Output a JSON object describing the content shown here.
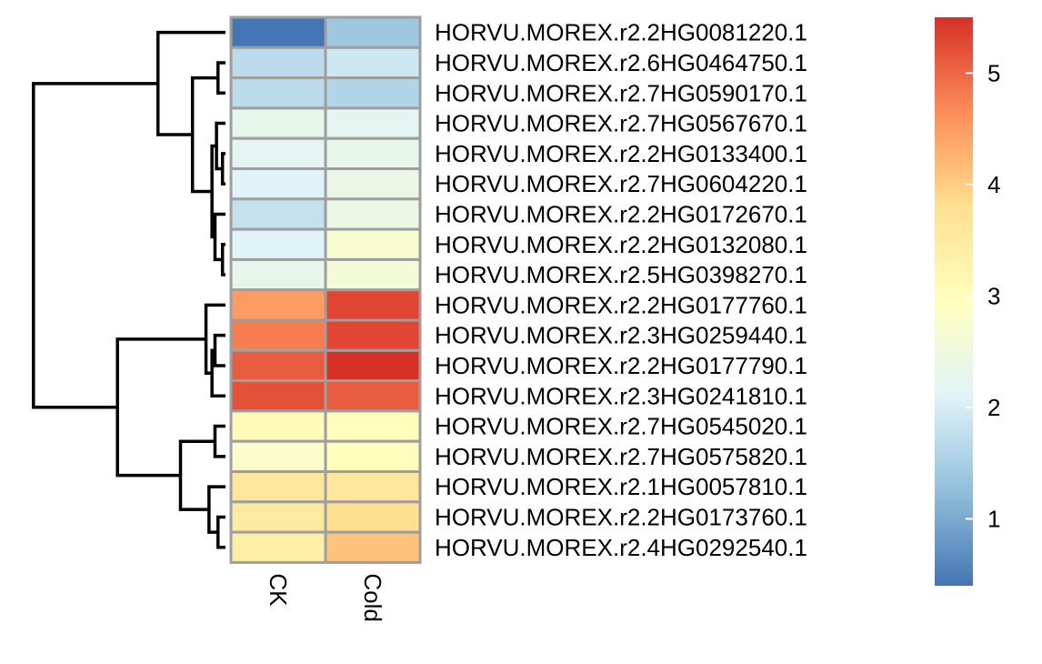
{
  "chart_data": {
    "type": "heatmap",
    "title": "",
    "columns": [
      "CK",
      "Cold"
    ],
    "rows": [
      "HORVU.MOREX.r2.2HG0081220.1",
      "HORVU.MOREX.r2.6HG0464750.1",
      "HORVU.MOREX.r2.7HG0590170.1",
      "HORVU.MOREX.r2.7HG0567670.1",
      "HORVU.MOREX.r2.2HG0133400.1",
      "HORVU.MOREX.r2.7HG0604220.1",
      "HORVU.MOREX.r2.2HG0172670.1",
      "HORVU.MOREX.r2.2HG0132080.1",
      "HORVU.MOREX.r2.5HG0398270.1",
      "HORVU.MOREX.r2.2HG0177760.1",
      "HORVU.MOREX.r2.3HG0259440.1",
      "HORVU.MOREX.r2.2HG0177790.1",
      "HORVU.MOREX.r2.3HG0241810.1",
      "HORVU.MOREX.r2.7HG0545020.1",
      "HORVU.MOREX.r2.7HG0575820.1",
      "HORVU.MOREX.r2.1HG0057810.1",
      "HORVU.MOREX.r2.2HG0173760.1",
      "HORVU.MOREX.r2.4HG0292540.1"
    ],
    "values": [
      [
        0.4,
        1.4
      ],
      [
        1.7,
        1.9
      ],
      [
        1.7,
        1.6
      ],
      [
        2.3,
        2.2
      ],
      [
        2.2,
        2.3
      ],
      [
        2.1,
        2.4
      ],
      [
        1.8,
        2.4
      ],
      [
        2.1,
        2.7
      ],
      [
        2.3,
        2.6
      ],
      [
        4.5,
        5.3
      ],
      [
        4.8,
        5.3
      ],
      [
        5.1,
        5.5
      ],
      [
        5.2,
        5.1
      ],
      [
        3.1,
        3.0
      ],
      [
        2.8,
        3.0
      ],
      [
        3.6,
        3.6
      ],
      [
        3.5,
        3.8
      ],
      [
        3.4,
        4.1
      ]
    ],
    "color_scale": {
      "min": 0.4,
      "max": 5.5,
      "ticks": [
        1,
        2,
        3,
        4,
        5
      ],
      "colors": [
        "#4575b4",
        "#91bfdb",
        "#e0f3f8",
        "#ffffbf",
        "#fee090",
        "#fc8d59",
        "#d73027"
      ]
    },
    "cell_border": "#9e9e9e",
    "dendrogram": {
      "leaf_order": [
        0,
        1,
        2,
        3,
        4,
        5,
        6,
        7,
        8,
        9,
        10,
        11,
        12,
        13,
        14,
        15,
        16,
        17
      ],
      "merges": [
        {
          "a": 4,
          "b": 5,
          "height": 0.1
        },
        {
          "a": 7,
          "b": 8,
          "height": 0.1
        },
        {
          "a": 16,
          "b": 17,
          "height": 0.25
        },
        {
          "a": 1,
          "b": 2,
          "height": 0.25
        },
        {
          "a": 3,
          "b": "m0",
          "height": 0.3
        },
        {
          "a": 6,
          "b": "m1",
          "height": 0.35
        },
        {
          "a": 13,
          "b": 14,
          "height": 0.35
        },
        {
          "a": 10,
          "b": 11,
          "height": 0.35
        },
        {
          "a": "m4",
          "b": "m5",
          "height": 0.45
        },
        {
          "a": 12,
          "b": "m7",
          "height": 0.45
        },
        {
          "a": 15,
          "b": "m2",
          "height": 0.55
        },
        {
          "a": "m3",
          "b": "m8",
          "height": 1.1
        },
        {
          "a": 9,
          "b": "m9",
          "height": 0.65
        },
        {
          "a": "m6",
          "b": "m10",
          "height": 1.5
        },
        {
          "a": 0,
          "b": "m11",
          "height": 2.25
        },
        {
          "a": "m12",
          "b": "m13",
          "height": 3.6
        },
        {
          "a": "m14",
          "b": "m15",
          "height": 6.4
        }
      ]
    }
  }
}
